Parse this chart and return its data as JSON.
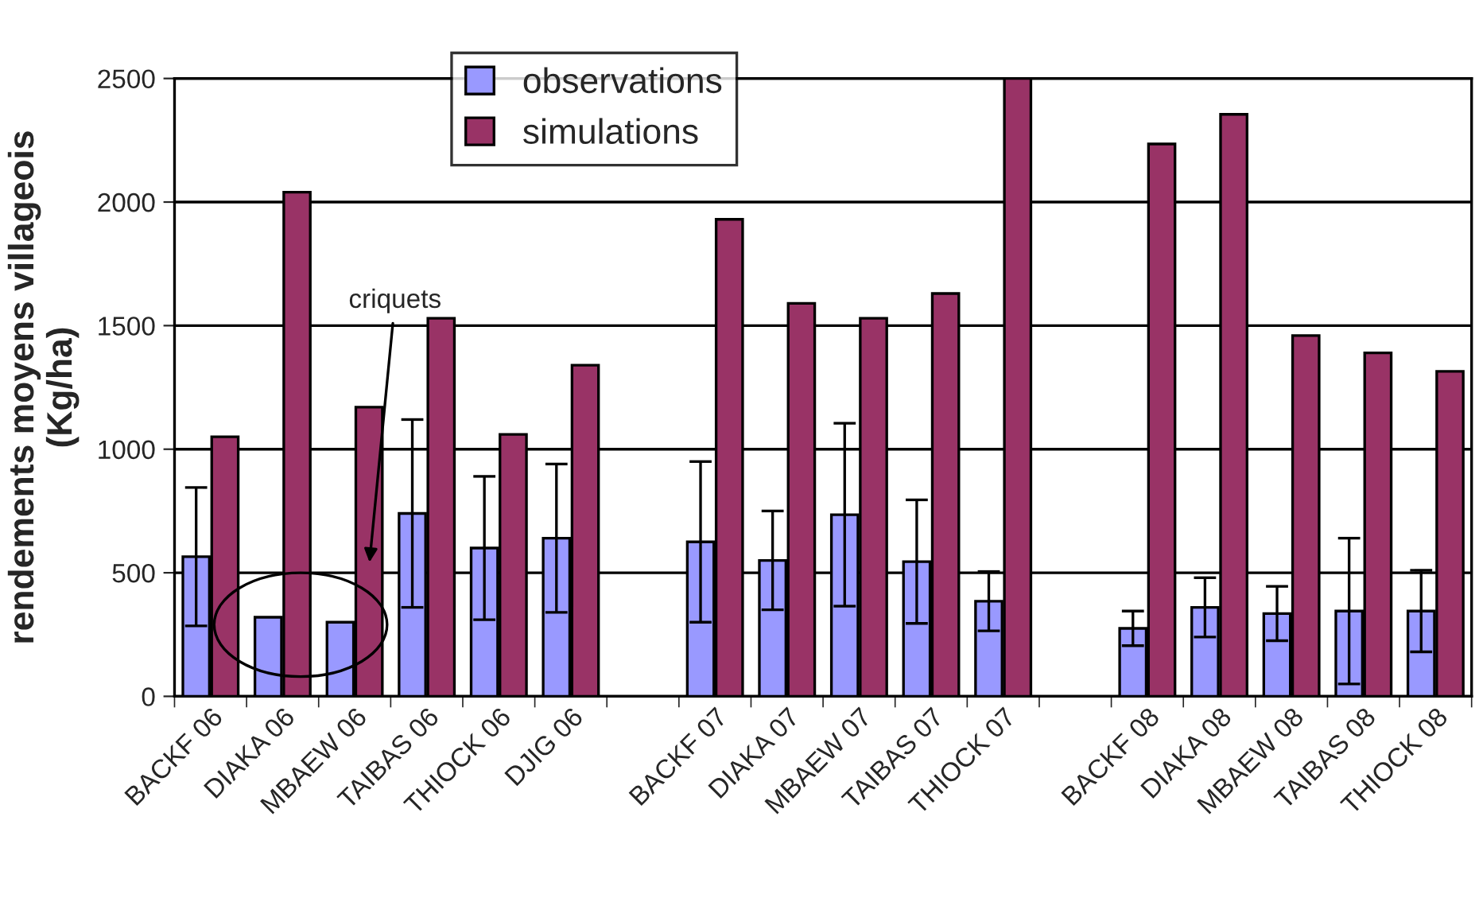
{
  "chart_data": {
    "type": "bar",
    "ylabel": "rendements moyens villageois\n(Kg/ha)",
    "categories": [
      "BACKF 06",
      "DIAKA 06",
      "MBAEW 06",
      "TAIBAS 06",
      "THIOCK 06",
      "DJIG 06",
      null,
      "BACKF 07",
      "DIAKA 07",
      "MBAEW 07",
      "TAIBAS 07",
      "THIOCK 07",
      null,
      "BACKF 08",
      "DIAKA 08",
      "MBAEW 08",
      "TAIBAS 08",
      "THIOCK 08"
    ],
    "series": [
      {
        "name": "observations",
        "color": "#9999ff",
        "values": [
          565,
          320,
          300,
          740,
          600,
          640,
          null,
          625,
          550,
          735,
          545,
          385,
          null,
          275,
          360,
          335,
          345,
          345
        ],
        "errors": [
          280,
          null,
          null,
          380,
          290,
          300,
          null,
          325,
          200,
          370,
          250,
          120,
          null,
          70,
          120,
          110,
          295,
          165
        ]
      },
      {
        "name": "simulations",
        "color": "#993366",
        "values": [
          1050,
          2040,
          1170,
          1530,
          1060,
          1340,
          null,
          1930,
          1590,
          1530,
          1630,
          2500,
          null,
          2235,
          2355,
          1460,
          1390,
          1315
        ]
      }
    ],
    "ylim": [
      0,
      2500
    ],
    "yticks": [
      0,
      500,
      1000,
      1500,
      2000,
      2500
    ],
    "grid": "y",
    "legend": "top left",
    "annotations": [
      "criquets"
    ]
  }
}
